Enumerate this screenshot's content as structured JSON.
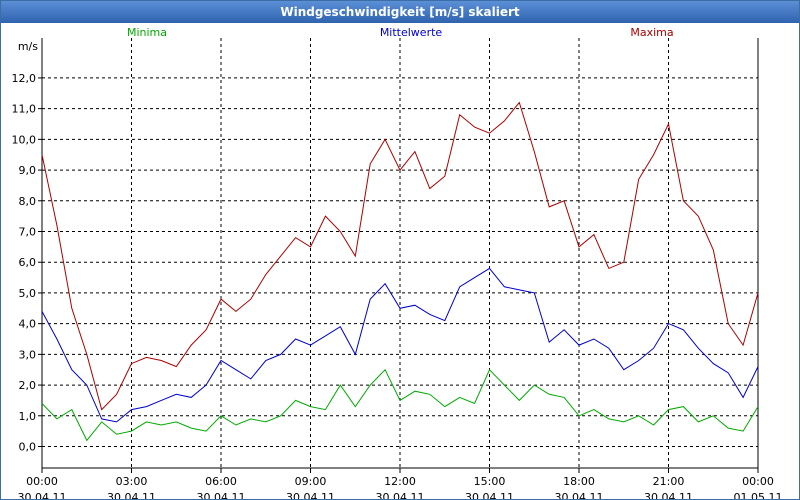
{
  "window": {
    "title": "Windgeschwindigkeit [m/s] skaliert"
  },
  "chart_data": {
    "type": "line",
    "title": "Windgeschwindigkeit [m/s] skaliert",
    "ylabel": "m/s",
    "xlabel": "",
    "ylim": [
      -0.7,
      13.3
    ],
    "yticks": [
      0.0,
      1.0,
      2.0,
      3.0,
      4.0,
      5.0,
      6.0,
      7.0,
      8.0,
      9.0,
      10.0,
      11.0,
      12.0
    ],
    "ytick_labels": [
      "0,0",
      "1,0",
      "2,0",
      "3,0",
      "4,0",
      "5,0",
      "6,0",
      "7,0",
      "8,0",
      "9,0",
      "10,0",
      "11,0",
      "12,0"
    ],
    "xlim": [
      0,
      24
    ],
    "xticks": [
      0,
      3,
      6,
      9,
      12,
      15,
      18,
      21,
      24
    ],
    "xtick_time": [
      "00:00",
      "03:00",
      "06:00",
      "09:00",
      "12:00",
      "15:00",
      "18:00",
      "21:00",
      "00:00"
    ],
    "xtick_date": [
      "30.04.11",
      "30.04.11",
      "30.04.11",
      "30.04.11",
      "30.04.11",
      "30.04.11",
      "30.04.11",
      "30.04.11",
      "01.05.11"
    ],
    "grid": true,
    "x": [
      0,
      0.5,
      1,
      1.5,
      2,
      2.5,
      3,
      3.5,
      4,
      4.5,
      5,
      5.5,
      6,
      6.5,
      7,
      7.5,
      8,
      8.5,
      9,
      9.5,
      10,
      10.5,
      11,
      11.5,
      12,
      12.5,
      13,
      13.5,
      14,
      14.5,
      15,
      15.5,
      16,
      16.5,
      17,
      17.5,
      18,
      18.5,
      19,
      19.5,
      20,
      20.5,
      21,
      21.5,
      22,
      22.5,
      23,
      23.5,
      24
    ],
    "series": [
      {
        "name": "Minima",
        "color": "#00aa00",
        "legend_position": "left",
        "values": [
          1.4,
          0.9,
          1.2,
          0.2,
          0.8,
          0.4,
          0.5,
          0.8,
          0.7,
          0.8,
          0.6,
          0.5,
          1.0,
          0.7,
          0.9,
          0.8,
          1.0,
          1.5,
          1.3,
          1.2,
          2.0,
          1.3,
          2.0,
          2.5,
          1.5,
          1.8,
          1.7,
          1.3,
          1.6,
          1.4,
          2.5,
          2.0,
          1.5,
          2.0,
          1.7,
          1.6,
          1.0,
          1.2,
          0.9,
          0.8,
          1.0,
          0.7,
          1.2,
          1.3,
          0.8,
          1.0,
          0.6,
          0.5,
          1.3
        ]
      },
      {
        "name": "Mittelwerte",
        "color": "#0000cc",
        "legend_position": "center",
        "values": [
          4.4,
          3.5,
          2.5,
          2.0,
          0.9,
          0.8,
          1.2,
          1.3,
          1.5,
          1.7,
          1.6,
          2.0,
          2.8,
          2.5,
          2.2,
          2.8,
          3.0,
          3.5,
          3.3,
          3.6,
          3.9,
          3.0,
          4.8,
          5.3,
          4.5,
          4.6,
          4.3,
          4.1,
          5.2,
          5.5,
          5.8,
          5.2,
          5.1,
          5.0,
          3.4,
          3.8,
          3.3,
          3.5,
          3.2,
          2.5,
          2.8,
          3.2,
          4.0,
          3.8,
          3.2,
          2.7,
          2.4,
          1.6,
          2.6
        ]
      },
      {
        "name": "Maxima",
        "color": "#aa0000",
        "legend_position": "right",
        "values": [
          9.5,
          7.2,
          4.5,
          3.0,
          1.2,
          1.7,
          2.7,
          2.9,
          2.8,
          2.6,
          3.3,
          3.8,
          4.8,
          4.4,
          4.8,
          5.6,
          6.2,
          6.8,
          6.5,
          7.5,
          7.0,
          6.2,
          9.2,
          10.0,
          9.0,
          9.6,
          8.4,
          8.8,
          10.8,
          10.4,
          10.2,
          10.6,
          11.2,
          9.6,
          7.8,
          8.0,
          6.5,
          6.9,
          5.8,
          6.0,
          8.7,
          9.5,
          10.5,
          8.0,
          7.5,
          6.4,
          4.0,
          3.3,
          5.0
        ]
      }
    ]
  }
}
